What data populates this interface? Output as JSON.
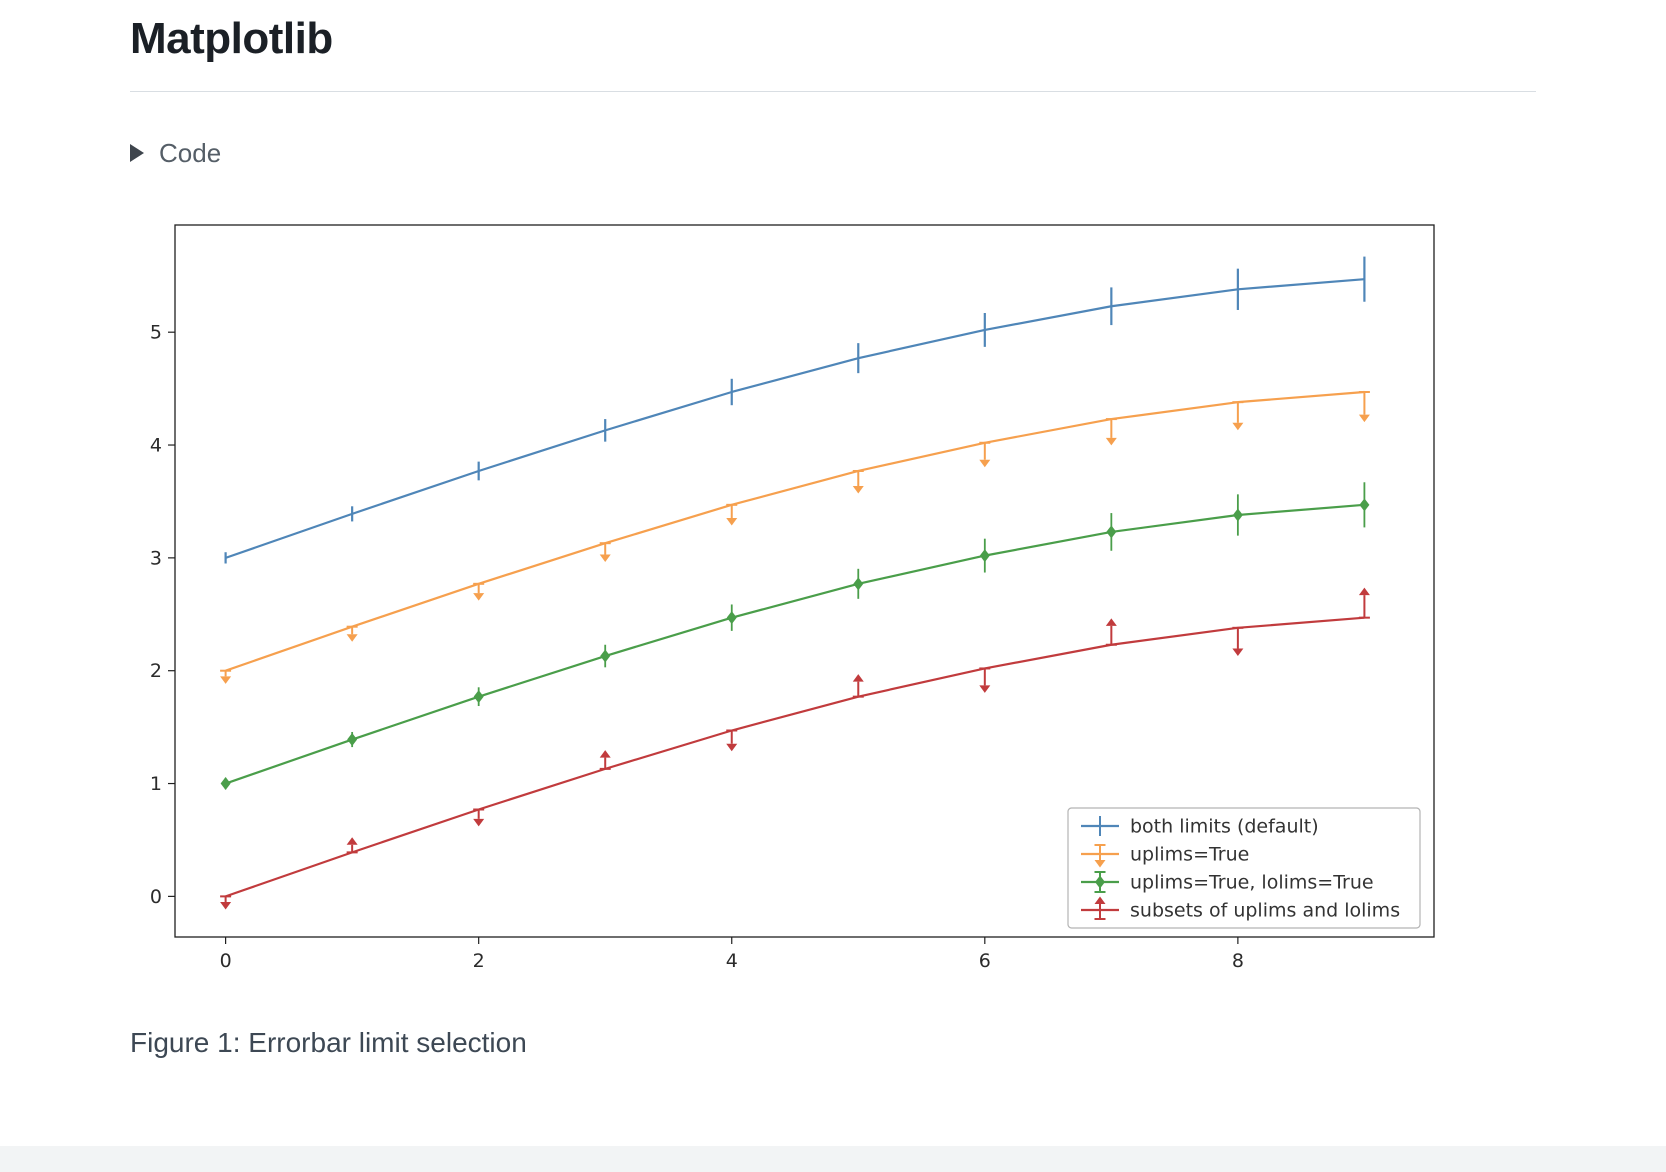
{
  "page": {
    "title": "Matplotlib",
    "code_toggle": {
      "label": "Code"
    },
    "figure_caption": "Figure 1: Errorbar limit selection"
  },
  "chart_data": {
    "type": "line",
    "title": "",
    "xlabel": "",
    "ylabel": "",
    "x": [
      0,
      1,
      2,
      3,
      4,
      5,
      6,
      7,
      8,
      9
    ],
    "yerr": [
      0.05,
      0.067,
      0.083,
      0.1,
      0.117,
      0.133,
      0.15,
      0.167,
      0.183,
      0.2
    ],
    "series": [
      {
        "name": "both limits (default)",
        "color": "#4f86b8",
        "errorbar_style": "bar",
        "values": [
          3.0,
          3.39,
          3.77,
          4.13,
          4.47,
          4.77,
          5.02,
          5.23,
          5.38,
          5.47
        ]
      },
      {
        "name": "uplims=True",
        "color": "#f6a04e",
        "errorbar_style": "arrow-down",
        "values": [
          2.0,
          2.39,
          2.77,
          3.13,
          3.47,
          3.77,
          4.02,
          4.23,
          4.38,
          4.47
        ]
      },
      {
        "name": "uplims=True, lolims=True",
        "color": "#4a9e4a",
        "errorbar_style": "arrow-both",
        "values": [
          1.0,
          1.39,
          1.77,
          2.13,
          2.47,
          2.77,
          3.02,
          3.23,
          3.38,
          3.47
        ]
      },
      {
        "name": "subsets of uplims and lolims",
        "color": "#c13b3d",
        "errorbar_style": "arrow-alternating",
        "arrow_pattern": [
          "down",
          "up",
          "down",
          "up",
          "down",
          "up",
          "down",
          "up",
          "down",
          "up"
        ],
        "values": [
          0.0,
          0.39,
          0.77,
          1.13,
          1.47,
          1.77,
          2.02,
          2.23,
          2.38,
          2.47
        ]
      }
    ],
    "xticks": [
      0,
      2,
      4,
      6,
      8
    ],
    "yticks": [
      0,
      1,
      2,
      3,
      4,
      5
    ],
    "xlim": [
      -0.4,
      9.55
    ],
    "ylim": [
      -0.36,
      5.95
    ],
    "grid": false,
    "legend_position": "lower right"
  },
  "colors": {
    "spine": "#202020",
    "tick_label": "#2b2b2b",
    "legend_border": "#b3b3b3"
  }
}
